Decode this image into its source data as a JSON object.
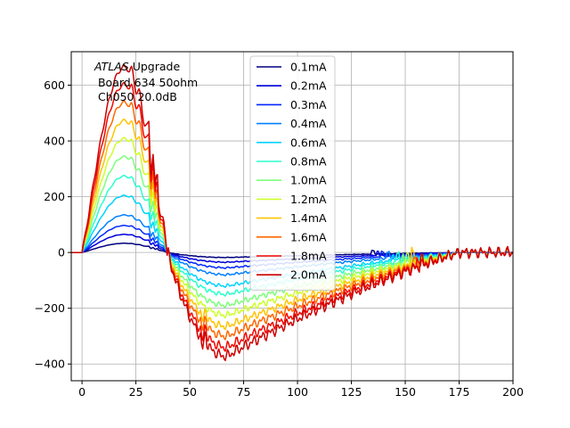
{
  "chart_data": {
    "type": "line",
    "title": "",
    "xlabel": "",
    "ylabel": "",
    "xlim": [
      -5,
      200
    ],
    "ylim": [
      -460,
      720
    ],
    "xticks": [
      0,
      25,
      50,
      75,
      100,
      125,
      150,
      175,
      200
    ],
    "yticks": [
      -400,
      -200,
      0,
      200,
      400,
      600
    ],
    "grid": true,
    "legend_position": "top-center",
    "annotation": {
      "line1_italic": "ATLAS",
      "line1_rest": " Upgrade",
      "line2": " Board 634 50ohm",
      "line3": " Ch050 20.0dB"
    },
    "pulse_shape": {
      "peak_x": 18,
      "zero_cross_x": 40,
      "undershoot_min_x": 67,
      "tail_end_x": 175
    },
    "series": [
      {
        "name": "0.1mA",
        "color": "#00007f",
        "peak": 33,
        "undershoot": -18
      },
      {
        "name": "0.2mA",
        "color": "#0000db",
        "peak": 65,
        "undershoot": -35
      },
      {
        "name": "0.3mA",
        "color": "#0028ff",
        "peak": 97,
        "undershoot": -55
      },
      {
        "name": "0.4mA",
        "color": "#0080ff",
        "peak": 135,
        "undershoot": -80
      },
      {
        "name": "0.6mA",
        "color": "#00d4ff",
        "peak": 205,
        "undershoot": -120
      },
      {
        "name": "0.8mA",
        "color": "#2affcd",
        "peak": 275,
        "undershoot": -150
      },
      {
        "name": "1.0mA",
        "color": "#7dff7a",
        "peak": 345,
        "undershoot": -190
      },
      {
        "name": "1.2mA",
        "color": "#cdff2a",
        "peak": 410,
        "undershoot": -225
      },
      {
        "name": "1.4mA",
        "color": "#ffc400",
        "peak": 475,
        "undershoot": -265
      },
      {
        "name": "1.6mA",
        "color": "#ff6800",
        "peak": 540,
        "undershoot": -300
      },
      {
        "name": "1.8mA",
        "color": "#f10800",
        "peak": 605,
        "undershoot": -340
      },
      {
        "name": "2.0mA",
        "color": "#cc0000",
        "peak": 668,
        "undershoot": -372
      }
    ]
  }
}
